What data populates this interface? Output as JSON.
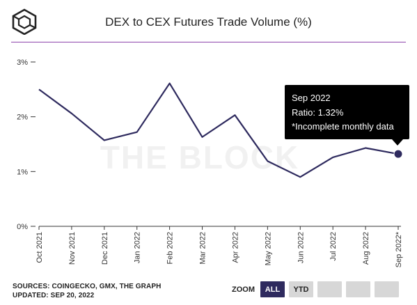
{
  "header": {
    "title": "DEX to CEX Futures Trade Volume (%)",
    "logo_icon": "the-block-cube-logo",
    "accent_color": "#8e44ad"
  },
  "watermark": "THE BLOCK",
  "chart_data": {
    "type": "line",
    "title": "DEX to CEX Futures Trade Volume (%)",
    "xlabel": "",
    "ylabel": "",
    "categories": [
      "Oct 2021",
      "Nov 2021",
      "Dec 2021",
      "Jan 2022",
      "Feb 2022",
      "Mar 2022",
      "Apr 2022",
      "May 2022",
      "Jun 2022",
      "Jul 2022",
      "Aug 2022",
      "Sep 2022*"
    ],
    "series": [
      {
        "values": [
          2.5,
          2.06,
          1.57,
          1.72,
          2.61,
          1.63,
          2.03,
          1.19,
          0.9,
          1.26,
          1.43,
          1.32
        ],
        "color": "#2e2a5e"
      }
    ],
    "yticks": [
      "0%",
      "1%",
      "2%",
      "3%"
    ],
    "ylim": [
      0,
      3
    ],
    "grid": false,
    "legend": "none"
  },
  "tooltip": {
    "line1": "Sep 2022",
    "line2": "Ratio: 1.32%",
    "line3": "*Incomplete monthly data"
  },
  "footer": {
    "sources": "SOURCES: COINGECKO, GMX, THE GRAPH",
    "updated": "UPDATED: SEP 20, 2022"
  },
  "zoom": {
    "label": "ZOOM",
    "all": "ALL",
    "ytd": "YTD"
  }
}
